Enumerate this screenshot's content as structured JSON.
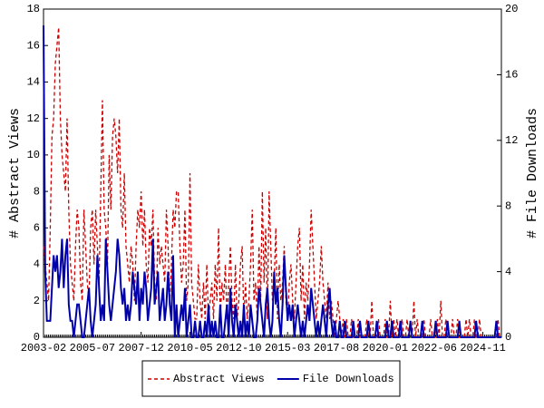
{
  "chart_data": {
    "type": "line",
    "y_label": "# Abstract Views",
    "y2_label": "# File Downloads",
    "categories": [
      "2003-02",
      null,
      null,
      null,
      null,
      null,
      null,
      null,
      null,
      null,
      null,
      null,
      null,
      null,
      null,
      null,
      null,
      null,
      null,
      null,
      null,
      null,
      null,
      null,
      null,
      null,
      null,
      null,
      null,
      "2005-07",
      null,
      null,
      null,
      null,
      null,
      null,
      null,
      null,
      null,
      null,
      null,
      null,
      null,
      null,
      null,
      null,
      null,
      null,
      null,
      null,
      null,
      null,
      null,
      null,
      null,
      null,
      null,
      null,
      "2007-12",
      null,
      null,
      null,
      null,
      null,
      null,
      null,
      null,
      null,
      null,
      null,
      null,
      null,
      null,
      null,
      null,
      null,
      null,
      null,
      null,
      null,
      null,
      null,
      null,
      null,
      null,
      null,
      null,
      "2010-05",
      null,
      null,
      null,
      null,
      null,
      null,
      null,
      null,
      null,
      null,
      null,
      null,
      null,
      null,
      null,
      null,
      null,
      null,
      null,
      null,
      null,
      null,
      null,
      null,
      null,
      null,
      null,
      null,
      "2012-10",
      null,
      null,
      null,
      null,
      null,
      null,
      null,
      null,
      null,
      null,
      null,
      null,
      null,
      null,
      null,
      null,
      null,
      null,
      null,
      null,
      null,
      null,
      null,
      null,
      null,
      null,
      null,
      null,
      "2015-03",
      null,
      null,
      null,
      null,
      null,
      null,
      null,
      null,
      null,
      null,
      null,
      null,
      null,
      null,
      null,
      null,
      null,
      null,
      null,
      null,
      null,
      null,
      null,
      null,
      null,
      null,
      null,
      null,
      "2017-08",
      null,
      null,
      null,
      null,
      null,
      null,
      null,
      null,
      null,
      null,
      null,
      null,
      null,
      null,
      null,
      null,
      null,
      null,
      null,
      null,
      null,
      null,
      null,
      null,
      null,
      null,
      null,
      null,
      "2020-01",
      null,
      null,
      null,
      null,
      null,
      null,
      null,
      null,
      null,
      null,
      null,
      null,
      null,
      null,
      null,
      null,
      null,
      null,
      null,
      null,
      null,
      null,
      null,
      null,
      null,
      null,
      null,
      null,
      "2022-06",
      null,
      null,
      null,
      null,
      null,
      null,
      null,
      null,
      null,
      null,
      null,
      null,
      null,
      null,
      null,
      null,
      null,
      null,
      null,
      null,
      null,
      null,
      null,
      null,
      null,
      null,
      null,
      null,
      "2024-11",
      null,
      null,
      null,
      null,
      null,
      null,
      null,
      null,
      null,
      null,
      null
    ],
    "series": [
      {
        "name": "Abstract Views",
        "color": "#cc0000",
        "dash": true,
        "values": [
          5,
          4,
          3,
          2,
          6,
          11,
          12,
          15,
          16,
          17,
          12,
          10,
          9,
          8,
          12,
          7,
          4,
          3,
          2,
          5,
          7,
          6,
          3,
          2,
          7,
          5,
          3,
          2,
          6,
          7,
          4,
          7,
          5,
          3,
          8,
          13,
          7,
          6,
          4,
          10,
          7,
          11,
          12,
          11,
          9,
          12,
          7,
          6,
          9,
          5,
          4,
          3,
          5,
          4,
          2,
          5,
          7,
          6,
          8,
          5,
          7,
          4,
          3,
          6,
          5,
          7,
          3,
          2,
          6,
          4,
          5,
          4,
          3,
          7,
          5,
          2,
          4,
          7,
          6,
          8,
          8,
          5,
          3,
          4,
          7,
          2,
          3,
          9,
          3,
          2,
          1,
          1,
          4,
          2,
          1,
          3,
          1,
          4,
          1,
          2,
          3,
          1,
          4,
          2,
          6,
          1,
          3,
          2,
          4,
          1,
          3,
          5,
          2,
          1,
          4,
          1,
          2,
          4,
          5,
          1,
          3,
          1,
          2,
          4,
          7,
          2,
          3,
          1,
          5,
          2,
          8,
          3,
          6,
          1,
          8,
          5,
          2,
          3,
          6,
          1,
          4,
          2,
          3,
          5,
          2,
          1,
          3,
          4,
          2,
          1,
          3,
          5,
          6,
          2,
          4,
          1,
          3,
          2,
          4,
          7,
          5,
          3,
          1,
          2,
          3,
          5,
          3,
          2,
          1,
          3,
          1,
          2,
          1,
          0,
          1,
          2,
          1,
          0,
          1,
          0,
          1,
          0,
          0,
          1,
          0,
          0,
          0,
          1,
          0,
          0,
          0,
          0,
          1,
          0,
          0,
          2,
          0,
          0,
          0,
          1,
          0,
          0,
          0,
          1,
          0,
          0,
          2,
          0,
          1,
          0,
          1,
          0,
          0,
          1,
          0,
          0,
          1,
          0,
          0,
          0,
          2,
          0,
          1,
          0,
          0,
          0,
          1,
          0,
          0,
          0,
          1,
          0,
          0,
          0,
          1,
          0,
          2,
          0,
          0,
          1,
          0,
          0,
          0,
          1,
          0,
          0,
          1,
          0,
          0,
          0,
          0,
          1,
          0,
          1,
          0,
          0,
          1,
          0,
          0,
          1,
          0,
          0,
          0,
          0,
          0,
          0,
          0,
          0,
          0,
          0,
          1,
          0,
          0
        ]
      },
      {
        "name": "File Downloads",
        "color": "#0000aa",
        "dash": false,
        "axis": "y2",
        "values": [
          19,
          4,
          1,
          1,
          1,
          3,
          5,
          4,
          5,
          3,
          4,
          6,
          3,
          5,
          6,
          2,
          1,
          1,
          0,
          1,
          2,
          2,
          1,
          0,
          0,
          1,
          2,
          3,
          1,
          0,
          1,
          2,
          5,
          3,
          1,
          2,
          1,
          6,
          4,
          2,
          1,
          2,
          3,
          4,
          6,
          5,
          3,
          2,
          3,
          1,
          2,
          1,
          2,
          4,
          3,
          2,
          4,
          1,
          3,
          2,
          4,
          3,
          1,
          2,
          3,
          6,
          2,
          3,
          4,
          1,
          2,
          3,
          1,
          2,
          4,
          2,
          1,
          5,
          0,
          2,
          0,
          1,
          2,
          1,
          3,
          0,
          1,
          2,
          0,
          0,
          1,
          0,
          0,
          1,
          0,
          0,
          1,
          0,
          2,
          0,
          1,
          0,
          1,
          0,
          0,
          2,
          0,
          0,
          1,
          2,
          0,
          3,
          1,
          0,
          2,
          1,
          0,
          1,
          0,
          2,
          0,
          1,
          0,
          2,
          1,
          0,
          0,
          1,
          3,
          2,
          1,
          0,
          2,
          3,
          1,
          0,
          1,
          4,
          2,
          3,
          1,
          0,
          2,
          5,
          3,
          1,
          2,
          1,
          2,
          0,
          1,
          2,
          1,
          0,
          1,
          0,
          1,
          2,
          1,
          3,
          2,
          1,
          0,
          1,
          0,
          1,
          2,
          1,
          0,
          2,
          3,
          1,
          0,
          1,
          0,
          0,
          1,
          0,
          0,
          1,
          0,
          0,
          0,
          0,
          1,
          0,
          0,
          0,
          1,
          0,
          0,
          0,
          0,
          1,
          0,
          0,
          0,
          0,
          1,
          0,
          0,
          0,
          0,
          0,
          1,
          0,
          0,
          1,
          0,
          0,
          0,
          0,
          1,
          0,
          0,
          0,
          0,
          0,
          1,
          0,
          0,
          0,
          0,
          0,
          0,
          1,
          0,
          0,
          0,
          0,
          0,
          0,
          0,
          1,
          0,
          0,
          0,
          0,
          0,
          0,
          1,
          0,
          0,
          0,
          0,
          0,
          0,
          1,
          0,
          0,
          0,
          0,
          0,
          0,
          0,
          0,
          0,
          1,
          0,
          0,
          0,
          0,
          0,
          0,
          0,
          0,
          0,
          0,
          0,
          1,
          0,
          0,
          0
        ]
      }
    ],
    "ylim": [
      0,
      18
    ],
    "yticks": [
      0,
      2,
      4,
      6,
      8,
      10,
      12,
      14,
      16,
      18
    ],
    "y2lim": [
      0,
      20
    ],
    "y2ticks": [
      0,
      4,
      8,
      12,
      16,
      20
    ],
    "grid": false,
    "legend": "bottom"
  }
}
